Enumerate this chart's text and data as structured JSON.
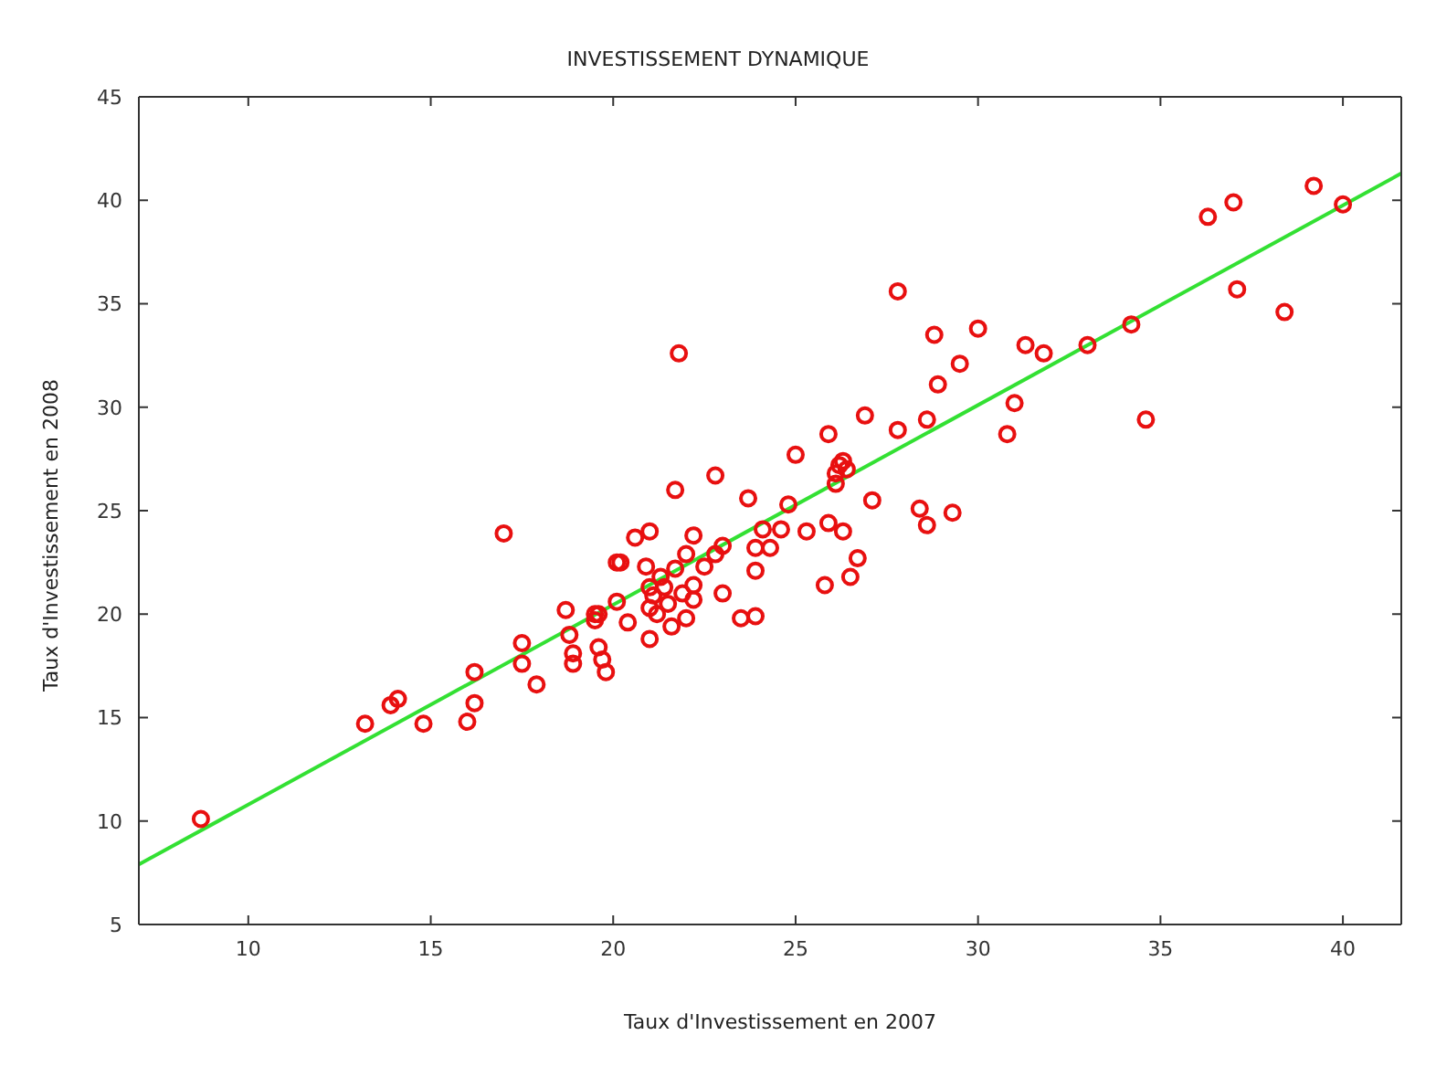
{
  "chart_data": {
    "type": "scatter",
    "title": "INVESTISSEMENT DYNAMIQUE",
    "xlabel": "Taux d'Investissement en 2007",
    "ylabel": "Taux d'Investissement en 2008",
    "xlim": [
      7,
      41.6
    ],
    "xticks": [
      10,
      15,
      20,
      25,
      30,
      35,
      40
    ],
    "ylim": [
      5,
      45
    ],
    "yticks": [
      5,
      10,
      15,
      20,
      25,
      30,
      35,
      40,
      45
    ],
    "marker": "circle",
    "series": [
      {
        "color": "#e81010",
        "x": [
          8.7,
          13.2,
          13.9,
          14.1,
          14.8,
          16.0,
          16.2,
          16.2,
          17.0,
          17.5,
          17.5,
          17.9,
          18.7,
          18.8,
          18.9,
          18.9,
          19.5,
          19.6,
          19.6,
          19.7,
          19.8,
          20.1,
          21.8,
          28.8,
          30.0,
          29.5,
          28.9,
          26.9,
          27.8,
          28.6,
          25.9,
          25.0,
          26.3,
          26.2,
          26.4,
          26.1,
          26.1,
          22.8,
          21.7,
          23.7,
          24.8,
          27.1,
          28.4,
          28.6,
          29.3,
          25.9,
          26.3,
          25.3,
          24.6,
          24.1,
          24.3,
          23.9,
          22.2,
          21.0,
          20.6,
          20.2,
          20.9,
          23.0,
          22.8,
          22.0,
          26.7,
          26.5,
          25.8,
          23.9,
          23.0,
          22.5,
          22.2,
          21.3,
          21.7,
          21.4,
          21.0,
          21.1,
          21.9,
          22.2,
          21.5,
          21.0,
          21.2,
          22.0,
          21.6,
          21.0,
          20.1,
          19.5,
          20.4,
          23.5,
          23.9,
          27.8,
          36.3,
          37.0,
          39.2,
          40.0,
          37.1,
          38.4,
          34.2,
          33.0,
          34.6,
          31.3,
          31.8,
          31.0,
          30.8
        ],
        "values": [
          10.1,
          14.7,
          15.6,
          15.9,
          14.7,
          14.8,
          15.7,
          17.2,
          23.9,
          18.6,
          17.6,
          16.6,
          20.2,
          19.0,
          18.1,
          17.6,
          19.7,
          20.0,
          18.4,
          17.8,
          17.2,
          22.5,
          32.6,
          33.5,
          33.8,
          32.1,
          31.1,
          29.6,
          28.9,
          29.4,
          28.7,
          27.7,
          27.4,
          27.2,
          27.0,
          26.8,
          26.3,
          26.7,
          26.0,
          25.6,
          25.3,
          25.5,
          25.1,
          24.3,
          24.9,
          24.4,
          24.0,
          24.0,
          24.1,
          24.1,
          23.2,
          23.2,
          23.8,
          24.0,
          23.7,
          22.5,
          22.3,
          23.3,
          22.9,
          22.9,
          22.7,
          21.8,
          21.4,
          22.1,
          21.0,
          22.3,
          21.4,
          21.8,
          22.2,
          21.3,
          21.3,
          20.9,
          21.0,
          20.7,
          20.5,
          20.3,
          20.0,
          19.8,
          19.4,
          18.8,
          20.6,
          20.0,
          19.6,
          19.8,
          19.9,
          35.6,
          39.2,
          39.9,
          40.7,
          39.8,
          35.7,
          34.6,
          34.0,
          33.0,
          29.4,
          33.0,
          32.6,
          30.2,
          28.7
        ]
      },
      {
        "type": "line",
        "color": "#33e033",
        "marker": "none",
        "x": [
          7,
          41.6
        ],
        "values": [
          7.9,
          41.3
        ]
      }
    ]
  }
}
